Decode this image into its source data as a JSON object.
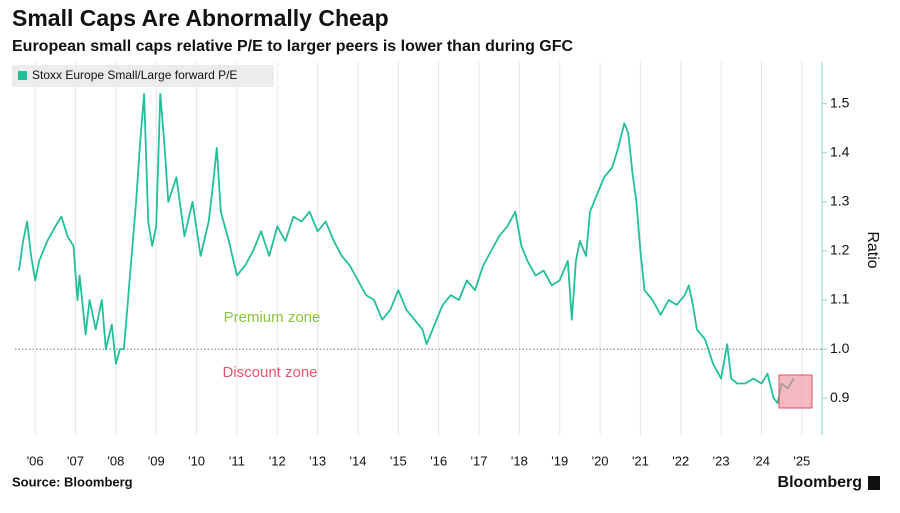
{
  "chart_data": {
    "type": "line",
    "title": "Small Caps Are Abnormally Cheap",
    "subtitle": "European small caps relative P/E to larger peers is lower than during GFC",
    "y_label": "Ratio",
    "source": "Source: Bloomberg",
    "brand": "Bloomberg",
    "annotations": [
      "Premium zone",
      "Discount zone"
    ],
    "reference_line": 1,
    "xlim": [
      2006,
      2026
    ],
    "ylim": [
      0.825,
      1.585
    ],
    "xticks": [
      {
        "value": 2006.5,
        "label": "'06"
      },
      {
        "value": 2007.5,
        "label": "'07"
      },
      {
        "value": 2008.5,
        "label": "'08"
      },
      {
        "value": 2009.5,
        "label": "'09"
      },
      {
        "value": 2010.5,
        "label": "'10"
      },
      {
        "value": 2011.5,
        "label": "'11"
      },
      {
        "value": 2012.5,
        "label": "'12"
      },
      {
        "value": 2013.5,
        "label": "'13"
      },
      {
        "value": 2014.5,
        "label": "'14"
      },
      {
        "value": 2015.5,
        "label": "'15"
      },
      {
        "value": 2016.5,
        "label": "'16"
      },
      {
        "value": 2017.5,
        "label": "'17"
      },
      {
        "value": 2018.5,
        "label": "'18"
      },
      {
        "value": 2019.5,
        "label": "'19"
      },
      {
        "value": 2020.5,
        "label": "'20"
      },
      {
        "value": 2021.5,
        "label": "'21"
      },
      {
        "value": 2022.5,
        "label": "'22"
      },
      {
        "value": 2023.5,
        "label": "'23"
      },
      {
        "value": 2024.5,
        "label": "'24"
      },
      {
        "value": 2025.5,
        "label": "'25"
      }
    ],
    "yticks": [
      0.9,
      {
        "value": 1,
        "label": "1.0"
      },
      1.1,
      1.2,
      1.3,
      1.4,
      1.5
    ],
    "grid": true,
    "x": [
      2006.1,
      2006.2,
      2006.3,
      2006.4,
      2006.5,
      2006.6,
      2006.8,
      2007.0,
      2007.15,
      2007.3,
      2007.45,
      2007.55,
      2007.6,
      2007.75,
      2007.85,
      2008.0,
      2008.15,
      2008.25,
      2008.4,
      2008.5,
      2008.6,
      2008.7,
      2008.85,
      2009.0,
      2009.1,
      2009.2,
      2009.3,
      2009.4,
      2009.5,
      2009.6,
      2009.7,
      2009.8,
      2010.0,
      2010.2,
      2010.4,
      2010.6,
      2010.8,
      2010.9,
      2011.0,
      2011.1,
      2011.3,
      2011.5,
      2011.7,
      2011.9,
      2012.1,
      2012.3,
      2012.5,
      2012.7,
      2012.9,
      2013.1,
      2013.3,
      2013.5,
      2013.7,
      2013.9,
      2014.1,
      2014.3,
      2014.5,
      2014.7,
      2014.9,
      2015.1,
      2015.3,
      2015.5,
      2015.7,
      2015.9,
      2016.1,
      2016.2,
      2016.4,
      2016.6,
      2016.8,
      2017.0,
      2017.2,
      2017.4,
      2017.6,
      2017.8,
      2018.0,
      2018.2,
      2018.4,
      2018.55,
      2018.7,
      2018.9,
      2019.1,
      2019.3,
      2019.5,
      2019.7,
      2019.8,
      2019.9,
      2020.0,
      2020.15,
      2020.25,
      2020.4,
      2020.6,
      2020.8,
      2020.95,
      2021.1,
      2021.2,
      2021.3,
      2021.4,
      2021.5,
      2021.6,
      2021.8,
      2022.0,
      2022.2,
      2022.4,
      2022.6,
      2022.7,
      2022.8,
      2022.9,
      2023.1,
      2023.3,
      2023.5,
      2023.65,
      2023.75,
      2023.9,
      2024.1,
      2024.3,
      2024.5,
      2024.65,
      2024.8,
      2024.9,
      2025.0,
      2025.15,
      2025.3
    ],
    "series": [
      {
        "name": "Stoxx Europe Small/Large forward P/E",
        "color": "#22c09a",
        "values": [
          1.16,
          1.22,
          1.26,
          1.19,
          1.14,
          1.18,
          1.22,
          1.25,
          1.27,
          1.23,
          1.21,
          1.1,
          1.15,
          1.03,
          1.1,
          1.04,
          1.1,
          1.0,
          1.05,
          0.97,
          1.0,
          1.0,
          1.15,
          1.3,
          1.42,
          1.52,
          1.26,
          1.21,
          1.25,
          1.52,
          1.42,
          1.3,
          1.35,
          1.23,
          1.3,
          1.19,
          1.26,
          1.33,
          1.41,
          1.28,
          1.22,
          1.15,
          1.17,
          1.2,
          1.24,
          1.19,
          1.25,
          1.22,
          1.27,
          1.26,
          1.28,
          1.24,
          1.26,
          1.22,
          1.19,
          1.17,
          1.14,
          1.11,
          1.1,
          1.06,
          1.08,
          1.12,
          1.08,
          1.06,
          1.04,
          1.01,
          1.05,
          1.09,
          1.11,
          1.1,
          1.14,
          1.12,
          1.17,
          1.2,
          1.23,
          1.25,
          1.28,
          1.21,
          1.18,
          1.15,
          1.16,
          1.13,
          1.14,
          1.18,
          1.06,
          1.18,
          1.22,
          1.19,
          1.28,
          1.31,
          1.35,
          1.37,
          1.41,
          1.46,
          1.44,
          1.36,
          1.3,
          1.2,
          1.12,
          1.1,
          1.07,
          1.1,
          1.09,
          1.11,
          1.13,
          1.09,
          1.04,
          1.02,
          0.97,
          0.94,
          1.01,
          0.94,
          0.93,
          0.93,
          0.94,
          0.93,
          0.95,
          0.9,
          0.89,
          0.93,
          0.92,
          0.94
        ]
      }
    ]
  }
}
